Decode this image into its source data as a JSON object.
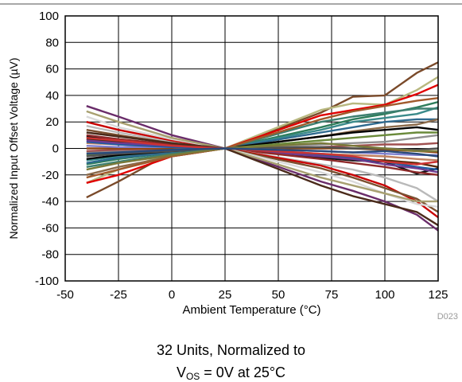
{
  "chart_data": {
    "type": "line",
    "xlabel": "Ambient Temperature (°C)",
    "ylabel": "Normalized Input Offset Voltage (µV)",
    "xlim": [
      -50,
      125
    ],
    "ylim": [
      -100,
      100
    ],
    "xticks": [
      -50,
      -25,
      0,
      25,
      50,
      75,
      100,
      125
    ],
    "yticks": [
      100,
      80,
      60,
      40,
      20,
      0,
      -20,
      -40,
      -60,
      -80,
      -100
    ],
    "grid": true,
    "code_label": "D023",
    "x": [
      -40,
      -25,
      0,
      25,
      70,
      85,
      100,
      115,
      125
    ],
    "series": [
      {
        "color": "#7a4a2a",
        "values": [
          -37,
          -25,
          -3,
          0,
          27,
          39,
          40,
          57,
          65
        ]
      },
      {
        "color": "#b8b880",
        "values": [
          -26,
          -16,
          -4,
          0,
          29,
          34,
          33,
          44,
          54
        ]
      },
      {
        "color": "#e00000",
        "values": [
          -26,
          -20,
          -6,
          0,
          25,
          29,
          33,
          41,
          48
        ]
      },
      {
        "color": "#2e7d5b",
        "values": [
          -12,
          -8,
          -3,
          0,
          16,
          22,
          26,
          31,
          35
        ]
      },
      {
        "color": "#3a8a8a",
        "values": [
          -9,
          -6,
          -2,
          0,
          14,
          20,
          23,
          26,
          31
        ]
      },
      {
        "color": "#2f6a8f",
        "values": [
          -11,
          -7,
          -3,
          0,
          12,
          16,
          20,
          22,
          22
        ]
      },
      {
        "color": "#8b6a4a",
        "values": [
          -20,
          -14,
          -6,
          0,
          9,
          13,
          16,
          18,
          22
        ]
      },
      {
        "color": "#000000",
        "values": [
          -8,
          -5,
          -2,
          0,
          9,
          12,
          14,
          16,
          14
        ]
      },
      {
        "color": "#6a8a3a",
        "values": [
          -5,
          -3,
          -1,
          0,
          6,
          8,
          10,
          12,
          12
        ]
      },
      {
        "color": "#909090",
        "values": [
          -3,
          -2,
          -1,
          0,
          3,
          4,
          5,
          8,
          10
        ]
      },
      {
        "color": "#a05050",
        "values": [
          -2,
          -1,
          0,
          0,
          1,
          2,
          3,
          3,
          4
        ]
      },
      {
        "color": "#8b4513",
        "values": [
          0,
          0,
          0,
          0,
          0,
          0,
          -1,
          -2,
          -3
        ]
      },
      {
        "color": "#505050",
        "values": [
          -6,
          -4,
          -2,
          0,
          1,
          0,
          0,
          -1,
          0
        ]
      },
      {
        "color": "#7f7fcf",
        "values": [
          2,
          1,
          1,
          0,
          -2,
          -3,
          -4,
          -5,
          -5
        ]
      },
      {
        "color": "#c08060",
        "values": [
          4,
          3,
          1,
          0,
          -4,
          -5,
          -6,
          -8,
          -9
        ]
      },
      {
        "color": "#5a2a0a",
        "values": [
          7,
          5,
          2,
          0,
          -6,
          -8,
          -9,
          -11,
          -14
        ]
      },
      {
        "color": "#101010",
        "values": [
          9,
          6,
          3,
          0,
          -7,
          -9,
          -10,
          -19,
          -15
        ]
      },
      {
        "color": "#1e5aa0",
        "values": [
          5,
          3,
          1,
          0,
          -5,
          -7,
          -10,
          -14,
          -16
        ]
      },
      {
        "color": "#6e3c91",
        "values": [
          6,
          4,
          2,
          0,
          -6,
          -8,
          -12,
          -15,
          -18
        ]
      },
      {
        "color": "#8e2a2a",
        "values": [
          10,
          7,
          3,
          0,
          -8,
          -11,
          -14,
          -18,
          -20
        ]
      },
      {
        "color": "#b9b9b9",
        "values": [
          17,
          12,
          5,
          0,
          -12,
          -16,
          -22,
          -30,
          -40
        ]
      },
      {
        "color": "#c80000",
        "values": [
          20,
          14,
          6,
          0,
          -13,
          -20,
          -28,
          -40,
          -52
        ]
      },
      {
        "color": "#7a5030",
        "values": [
          14,
          10,
          4,
          0,
          -15,
          -22,
          -30,
          -38,
          -48
        ]
      },
      {
        "color": "#d9d9d9",
        "values": [
          24,
          16,
          7,
          0,
          -18,
          -25,
          -34,
          -42,
          -44
        ]
      },
      {
        "color": "#6a2c6a",
        "values": [
          32,
          24,
          10,
          0,
          -25,
          -32,
          -40,
          -50,
          -62
        ]
      },
      {
        "color": "#a8a070",
        "values": [
          28,
          20,
          8,
          0,
          -22,
          -28,
          -34,
          -40,
          -40
        ]
      },
      {
        "color": "#4a2a1a",
        "values": [
          12,
          9,
          4,
          0,
          -28,
          -36,
          -42,
          -48,
          -58
        ]
      },
      {
        "color": "#3d7f70",
        "values": [
          -14,
          -10,
          -4,
          0,
          20,
          24,
          27,
          30,
          30
        ]
      },
      {
        "color": "#a05a2c",
        "values": [
          -22,
          -16,
          -6,
          0,
          22,
          28,
          32,
          36,
          38
        ]
      },
      {
        "color": "#cc3333",
        "values": [
          8,
          6,
          2,
          0,
          -4,
          -6,
          -10,
          -12,
          -10
        ]
      },
      {
        "color": "#7a7a3a",
        "values": [
          -16,
          -11,
          -5,
          0,
          4,
          2,
          0,
          -2,
          -2
        ]
      },
      {
        "color": "#2a4a7a",
        "values": [
          -4,
          -3,
          -1,
          0,
          -2,
          -3,
          -2,
          -4,
          -6
        ]
      }
    ]
  },
  "caption": {
    "line1": "32 Units, Normalized to",
    "line2_prefix": "V",
    "line2_sub": "OS",
    "line2_suffix": " = 0V at 25°C"
  }
}
